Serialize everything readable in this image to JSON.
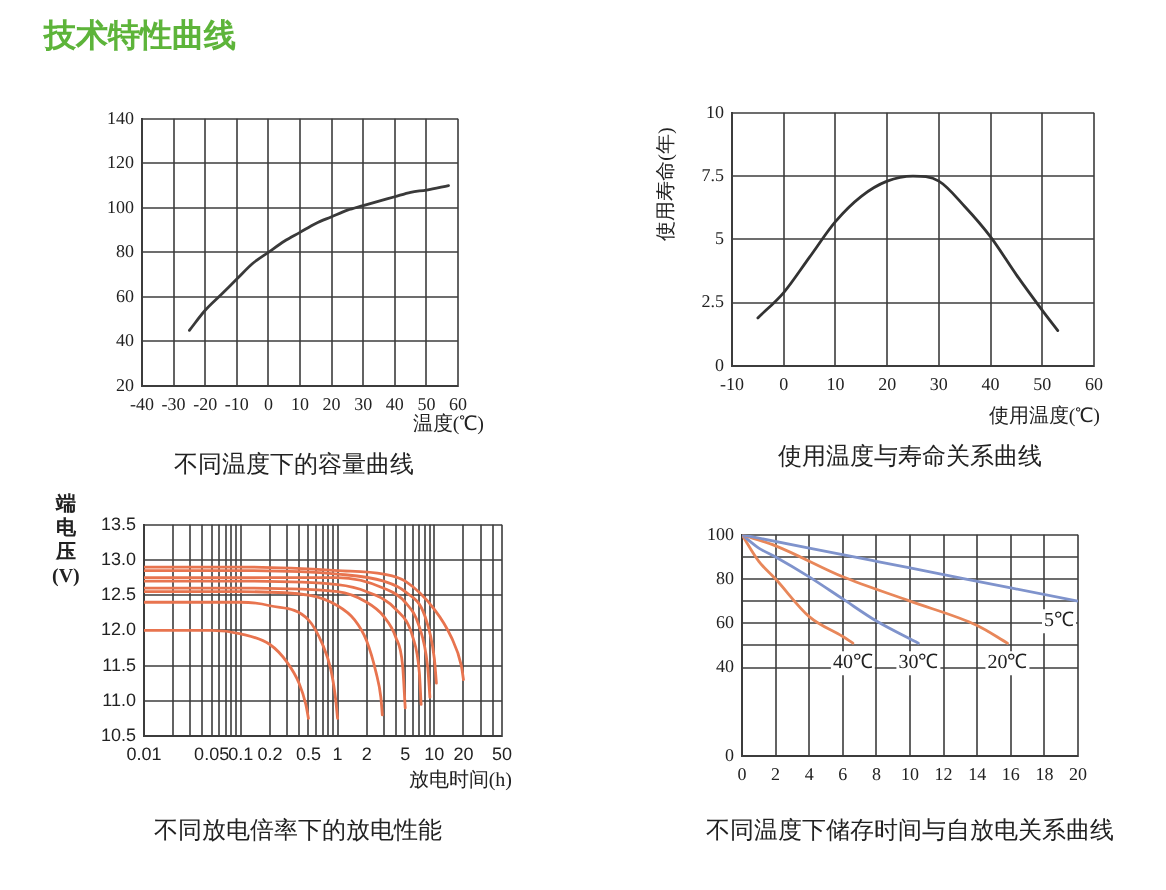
{
  "chart_data": [
    {
      "type": "line",
      "title": "不同温度下的容量曲线",
      "annotations": [
        "技术特性曲线"
      ],
      "xlabel": "温度(℃)",
      "x": [
        -25,
        -20,
        -15,
        -10,
        -5,
        0,
        5,
        10,
        15,
        20,
        25,
        30,
        35,
        40,
        45,
        50,
        57
      ],
      "values": [
        45,
        54,
        61,
        68,
        75,
        80,
        85,
        89,
        93,
        96,
        99,
        101,
        103,
        105,
        107,
        108,
        110
      ],
      "color": "#3a3a3a",
      "xlim": [
        -40,
        60
      ],
      "xticks": [
        -40,
        -30,
        -20,
        -10,
        0,
        10,
        20,
        30,
        40,
        50,
        60
      ],
      "ylim": [
        20,
        140
      ],
      "yticks": [
        20,
        40,
        60,
        80,
        100,
        120,
        140
      ],
      "grid": true
    },
    {
      "type": "line",
      "title": "使用温度与寿命关系曲线",
      "xlabel": "使用温度(℃)",
      "ylabel": "使用寿命(年)",
      "x": [
        -5,
        0,
        5,
        10,
        15,
        20,
        25,
        30,
        35,
        40,
        45,
        50,
        53
      ],
      "values": [
        1.9,
        2.9,
        4.3,
        5.7,
        6.7,
        7.3,
        7.5,
        7.3,
        6.3,
        5.1,
        3.6,
        2.2,
        1.4
      ],
      "color": "#333333",
      "xlim": [
        -10,
        60
      ],
      "xticks": [
        -10,
        0,
        10,
        20,
        30,
        40,
        50,
        60
      ],
      "ylim": [
        0,
        10
      ],
      "yticks": [
        0,
        2.5,
        5,
        7.5,
        10
      ],
      "grid": true
    },
    {
      "type": "line",
      "title": "不同放电倍率下的放电性能",
      "xlabel": "放电时间(h)",
      "ylabel": "端电压(V)",
      "log": "x",
      "xlim": [
        0.01,
        50
      ],
      "xticks": [
        0.01,
        {
          "value": 0.02,
          "label": null
        },
        {
          "value": 0.03,
          "label": null
        },
        {
          "value": 0.04,
          "label": null
        },
        0.05,
        {
          "value": 0.06,
          "label": null
        },
        {
          "value": 0.07,
          "label": null
        },
        {
          "value": 0.08,
          "label": null
        },
        {
          "value": 0.09,
          "label": null
        },
        0.1,
        0.2,
        {
          "value": 0.3,
          "label": null
        },
        {
          "value": 0.4,
          "label": null
        },
        0.5,
        {
          "value": 0.6,
          "label": null
        },
        {
          "value": 0.7,
          "label": null
        },
        {
          "value": 0.8,
          "label": null
        },
        {
          "value": 0.9,
          "label": null
        },
        1,
        2,
        {
          "value": 3,
          "label": null
        },
        {
          "value": 4,
          "label": null
        },
        5,
        {
          "value": 6,
          "label": null
        },
        {
          "value": 7,
          "label": null
        },
        {
          "value": 8,
          "label": null
        },
        {
          "value": 9,
          "label": null
        },
        10,
        20,
        {
          "value": 30,
          "label": null
        },
        {
          "value": 40,
          "label": null
        },
        50
      ],
      "ylim": [
        10.5,
        13.5
      ],
      "yticks": [
        10.5,
        {
          "value": 11,
          "label": "11.0"
        },
        11.5,
        {
          "value": 12,
          "label": "12.0"
        },
        12.5,
        {
          "value": 13,
          "label": "13.0"
        },
        13.5
      ],
      "grid": true,
      "series": [
        {
          "color": "#e8744f",
          "x": [
            0.01,
            0.05,
            0.1,
            0.2,
            0.3,
            0.4,
            0.47,
            0.5
          ],
          "values": [
            12.0,
            12.0,
            11.95,
            11.8,
            11.55,
            11.25,
            10.95,
            10.75
          ]
        },
        {
          "color": "#e8744f",
          "x": [
            0.01,
            0.1,
            0.2,
            0.5,
            0.7,
            0.85,
            0.95,
            1.0
          ],
          "values": [
            12.4,
            12.4,
            12.35,
            12.15,
            11.8,
            11.45,
            11.05,
            10.75
          ]
        },
        {
          "color": "#e8744f",
          "x": [
            0.01,
            0.1,
            0.5,
            1,
            1.5,
            2,
            2.5,
            2.8,
            2.9
          ],
          "values": [
            12.55,
            12.55,
            12.5,
            12.35,
            12.15,
            11.85,
            11.4,
            11.05,
            10.8
          ]
        },
        {
          "color": "#e8744f",
          "x": [
            0.01,
            0.1,
            1,
            2,
            3,
            4,
            4.7,
            5
          ],
          "values": [
            12.6,
            12.6,
            12.55,
            12.4,
            12.2,
            11.9,
            11.5,
            10.9
          ]
        },
        {
          "color": "#e8744f",
          "x": [
            0.01,
            0.1,
            1,
            2,
            4,
            6,
            7,
            7.3
          ],
          "values": [
            12.7,
            12.7,
            12.65,
            12.55,
            12.3,
            11.9,
            11.4,
            10.95
          ]
        },
        {
          "color": "#e8744f",
          "x": [
            0.01,
            0.1,
            1,
            3,
            5,
            7,
            8.5,
            9
          ],
          "values": [
            12.75,
            12.75,
            12.75,
            12.6,
            12.4,
            12.05,
            11.5,
            11.05
          ]
        },
        {
          "color": "#e8744f",
          "x": [
            0.01,
            0.1,
            1,
            3,
            5,
            8,
            10,
            10.5
          ],
          "values": [
            12.85,
            12.85,
            12.8,
            12.7,
            12.55,
            12.2,
            11.6,
            11.25
          ]
        },
        {
          "color": "#e8744f",
          "x": [
            0.01,
            0.1,
            1,
            3,
            5,
            10,
            15,
            19,
            20
          ],
          "values": [
            12.9,
            12.9,
            12.85,
            12.8,
            12.7,
            12.3,
            11.9,
            11.5,
            11.3
          ]
        }
      ]
    },
    {
      "type": "line",
      "title": "不同温度下储存时间与自放电关系曲线",
      "xlim": [
        0,
        20
      ],
      "xticks": [
        0,
        2,
        4,
        6,
        8,
        10,
        12,
        14,
        16,
        18,
        20
      ],
      "ylim": [
        0,
        100
      ],
      "yticks": [
        0,
        40,
        {
          "value": 50,
          "label": null
        },
        60,
        {
          "value": 70,
          "label": null
        },
        80,
        {
          "value": 90,
          "label": null
        },
        100
      ],
      "grid": true,
      "series": [
        {
          "name": "5℃",
          "color": "#7f93cc",
          "x": [
            0,
            4,
            8,
            12,
            16,
            20
          ],
          "values": [
            100,
            94,
            88,
            82,
            76,
            70
          ]
        },
        {
          "name": "20℃",
          "color": "#e8875a",
          "x": [
            0,
            2,
            6,
            10,
            14,
            15.8
          ],
          "values": [
            100,
            95,
            81,
            70,
            59,
            51
          ]
        },
        {
          "name": "30℃",
          "color": "#7f93cc",
          "x": [
            0,
            1,
            2,
            4,
            6,
            8,
            10.5
          ],
          "values": [
            100,
            94,
            90,
            81,
            71,
            61,
            51
          ]
        },
        {
          "name": "40℃",
          "color": "#e8875a",
          "x": [
            0,
            1,
            2,
            4,
            6,
            6.6
          ],
          "values": [
            100,
            88,
            80,
            63,
            54,
            51
          ]
        }
      ]
    }
  ]
}
